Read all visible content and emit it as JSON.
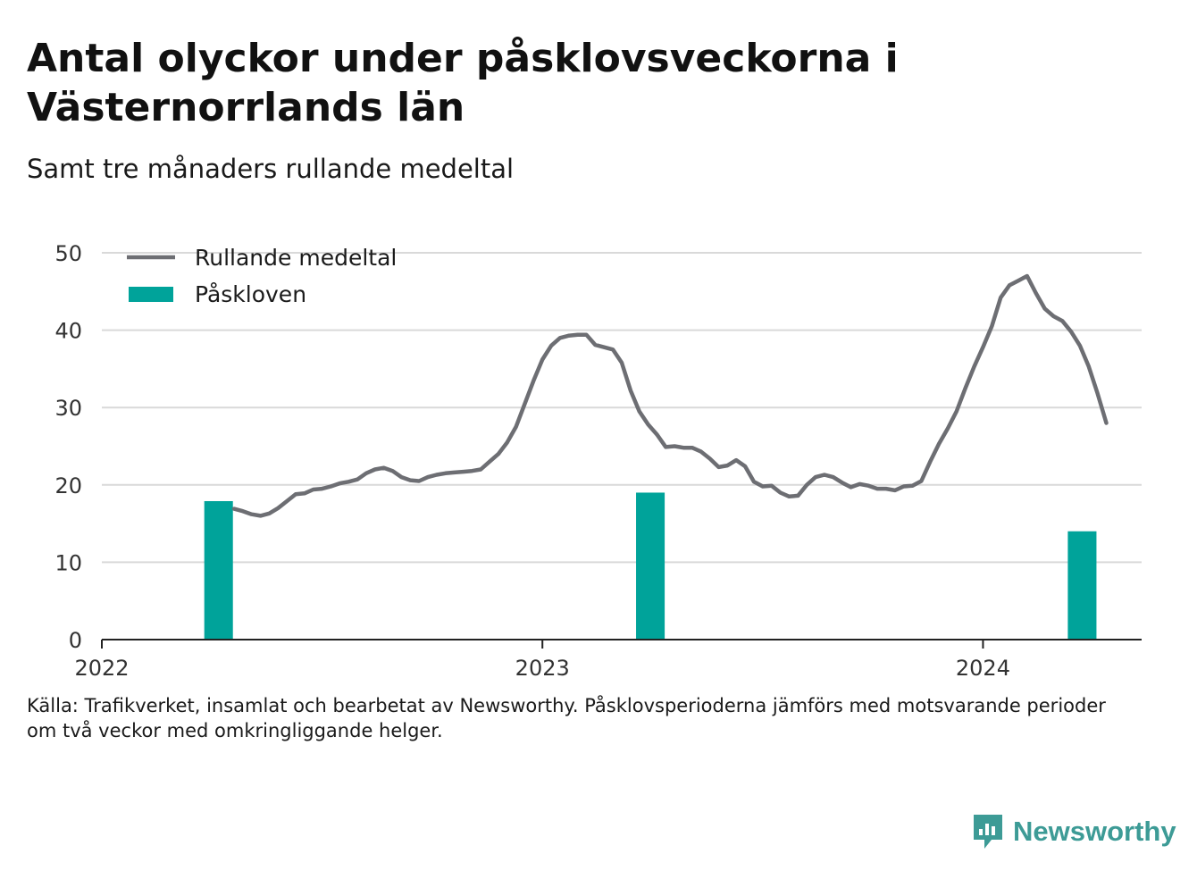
{
  "title": "Antal olyckor under påsklovsveckorna i Västernorrlands län",
  "subtitle": "Samt tre månaders rullande medeltal",
  "source_lines": [
    "Källa: Trafikverket, insamlat och bearbetat av Newsworthy. Påsklovsperioderna jämförs med motsvarande perioder",
    "om två veckor med omkringliggande helger."
  ],
  "logo": {
    "text": "Newsworthy",
    "icon": "newsworthy-chart-icon",
    "color": "#3d9b96"
  },
  "colors": {
    "line": "#6d6e73",
    "bar": "#00a39a",
    "grid": "#d9d9d9",
    "axis": "#222222"
  },
  "chart_data": {
    "type": "bar+line",
    "ylim": [
      0,
      50
    ],
    "yticks": [
      0,
      10,
      20,
      30,
      40,
      50
    ],
    "xticks": [
      {
        "x": 2022,
        "label": "2022"
      },
      {
        "x": 2023,
        "label": "2023"
      },
      {
        "x": 2024,
        "label": "2024"
      }
    ],
    "legend": [
      {
        "name": "Rullande medeltal",
        "kind": "line"
      },
      {
        "name": "Påskloven",
        "kind": "bar"
      }
    ],
    "legend_position": "top-left",
    "grid": true,
    "bars": {
      "name": "Påskloven",
      "width_years": 0.065,
      "points": [
        {
          "x": 2022.265,
          "y": 17.9
        },
        {
          "x": 2023.245,
          "y": 19.0
        },
        {
          "x": 2024.225,
          "y": 14.0
        }
      ]
    },
    "line": {
      "name": "Rullande medeltal",
      "points": [
        [
          2022.3,
          16.9
        ],
        [
          2022.32,
          16.6
        ],
        [
          2022.34,
          16.2
        ],
        [
          2022.36,
          16.0
        ],
        [
          2022.38,
          16.3
        ],
        [
          2022.4,
          17.0
        ],
        [
          2022.42,
          17.9
        ],
        [
          2022.44,
          18.8
        ],
        [
          2022.46,
          18.9
        ],
        [
          2022.48,
          19.4
        ],
        [
          2022.5,
          19.5
        ],
        [
          2022.52,
          19.8
        ],
        [
          2022.54,
          20.2
        ],
        [
          2022.56,
          20.4
        ],
        [
          2022.58,
          20.7
        ],
        [
          2022.6,
          21.5
        ],
        [
          2022.62,
          22.0
        ],
        [
          2022.64,
          22.2
        ],
        [
          2022.66,
          21.8
        ],
        [
          2022.68,
          21.0
        ],
        [
          2022.7,
          20.6
        ],
        [
          2022.72,
          20.5
        ],
        [
          2022.74,
          21.0
        ],
        [
          2022.76,
          21.3
        ],
        [
          2022.78,
          21.5
        ],
        [
          2022.8,
          21.6
        ],
        [
          2022.82,
          21.7
        ],
        [
          2022.84,
          21.8
        ],
        [
          2022.86,
          22.0
        ],
        [
          2022.88,
          23.0
        ],
        [
          2022.9,
          24.0
        ],
        [
          2022.92,
          25.5
        ],
        [
          2022.94,
          27.5
        ],
        [
          2022.96,
          30.5
        ],
        [
          2022.98,
          33.5
        ],
        [
          2023.0,
          36.2
        ],
        [
          2023.02,
          38.0
        ],
        [
          2023.04,
          39.0
        ],
        [
          2023.06,
          39.3
        ],
        [
          2023.08,
          39.4
        ],
        [
          2023.1,
          39.4
        ],
        [
          2023.12,
          38.1
        ],
        [
          2023.14,
          37.8
        ],
        [
          2023.16,
          37.5
        ],
        [
          2023.18,
          35.8
        ],
        [
          2023.2,
          32.2
        ],
        [
          2023.22,
          29.5
        ],
        [
          2023.24,
          27.8
        ],
        [
          2023.26,
          26.5
        ],
        [
          2023.28,
          24.9
        ],
        [
          2023.3,
          25.0
        ],
        [
          2023.32,
          24.8
        ],
        [
          2023.34,
          24.8
        ],
        [
          2023.36,
          24.3
        ],
        [
          2023.38,
          23.4
        ],
        [
          2023.4,
          22.3
        ],
        [
          2023.42,
          22.5
        ],
        [
          2023.44,
          23.2
        ],
        [
          2023.46,
          22.4
        ],
        [
          2023.48,
          20.4
        ],
        [
          2023.5,
          19.8
        ],
        [
          2023.52,
          19.9
        ],
        [
          2023.54,
          19.0
        ],
        [
          2023.56,
          18.5
        ],
        [
          2023.58,
          18.6
        ],
        [
          2023.6,
          20.0
        ],
        [
          2023.62,
          21.0
        ],
        [
          2023.64,
          21.3
        ],
        [
          2023.66,
          21.0
        ],
        [
          2023.68,
          20.3
        ],
        [
          2023.7,
          19.7
        ],
        [
          2023.72,
          20.1
        ],
        [
          2023.74,
          19.9
        ],
        [
          2023.76,
          19.5
        ],
        [
          2023.78,
          19.5
        ],
        [
          2023.8,
          19.3
        ],
        [
          2023.82,
          19.8
        ],
        [
          2023.84,
          19.9
        ],
        [
          2023.86,
          20.5
        ],
        [
          2023.88,
          23.0
        ],
        [
          2023.9,
          25.3
        ],
        [
          2023.92,
          27.3
        ],
        [
          2023.94,
          29.5
        ],
        [
          2023.96,
          32.5
        ],
        [
          2023.98,
          35.3
        ],
        [
          2024.0,
          37.8
        ],
        [
          2024.02,
          40.5
        ],
        [
          2024.04,
          44.2
        ],
        [
          2024.06,
          45.8
        ],
        [
          2024.08,
          46.4
        ],
        [
          2024.1,
          47.0
        ],
        [
          2024.12,
          44.8
        ],
        [
          2024.14,
          42.8
        ],
        [
          2024.16,
          41.8
        ],
        [
          2024.18,
          41.2
        ],
        [
          2024.2,
          39.8
        ],
        [
          2024.22,
          38.0
        ],
        [
          2024.24,
          35.3
        ],
        [
          2024.26,
          31.8
        ],
        [
          2024.28,
          28.0
        ]
      ]
    }
  }
}
